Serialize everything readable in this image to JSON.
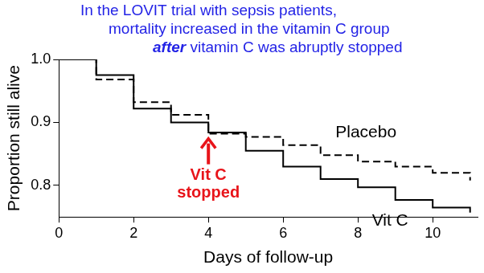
{
  "chart_data": {
    "type": "line",
    "title": [
      "In the LOVIT trial with sepsis patients,",
      "mortality increased in the vitamin C group",
      "after vitamin C was abruptly stopped"
    ],
    "x_label": "Days of follow-up",
    "y_label": "Proportion still alive",
    "x": [
      0,
      1,
      2,
      3,
      4,
      5,
      6,
      7,
      8,
      9,
      10,
      11
    ],
    "series": [
      {
        "name": "Placebo",
        "color": "#000000",
        "line_style": "dashed",
        "values": [
          1.0,
          0.968,
          0.932,
          0.912,
          0.882,
          0.877,
          0.864,
          0.848,
          0.838,
          0.83,
          0.82,
          0.808
        ]
      },
      {
        "name": "Vit C",
        "color": "#000000",
        "line_style": "solid",
        "values": [
          1.0,
          0.975,
          0.922,
          0.9,
          0.884,
          0.855,
          0.83,
          0.81,
          0.797,
          0.777,
          0.765,
          0.757
        ]
      }
    ],
    "xlim": [
      0,
      11.2
    ],
    "xticks": [
      0,
      2,
      4,
      6,
      8,
      10
    ],
    "ylim": [
      0.75,
      1.0
    ],
    "yticks": [
      0.8,
      0.9,
      {
        "value": 1,
        "label": "1.0"
      }
    ],
    "grid": false,
    "annotations": [
      {
        "text": [
          "Vit C",
          "stopped"
        ],
        "x": 4
      }
    ]
  }
}
